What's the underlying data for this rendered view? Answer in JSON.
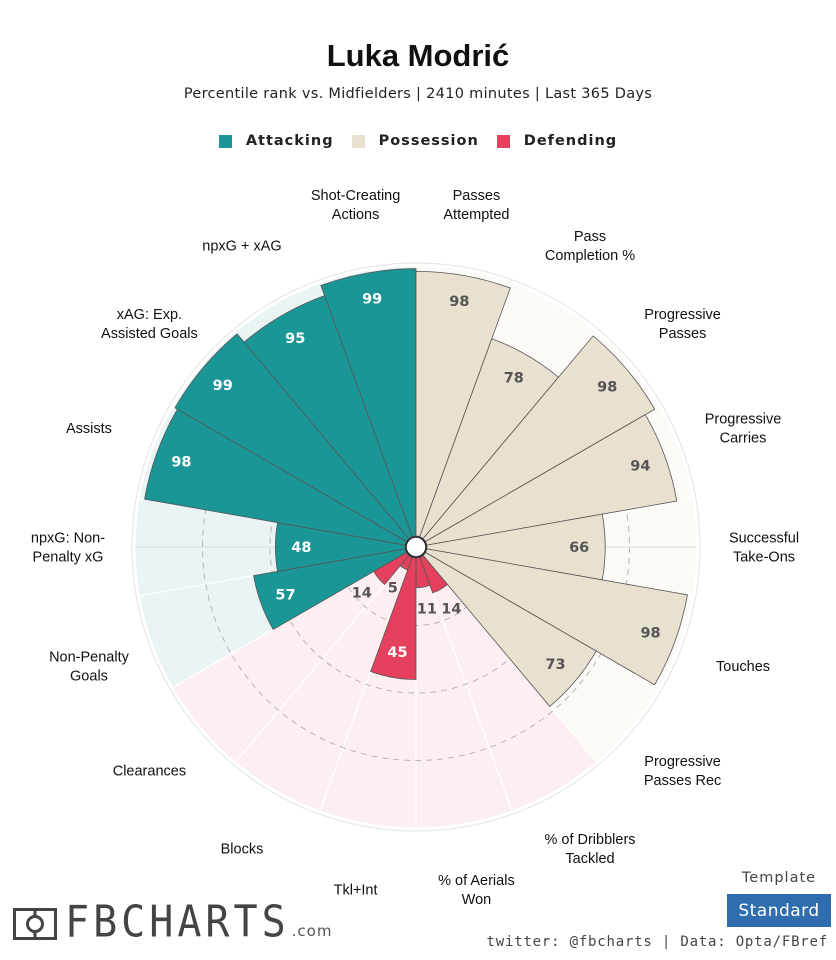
{
  "header": {
    "title": "Luka Modrić",
    "subtitle": "Percentile rank vs. Midfielders | 2410 minutes | Last 365 Days"
  },
  "legend": [
    {
      "label": "Attacking",
      "color": "#1a9696"
    },
    {
      "label": "Possession",
      "color": "#e8e1d0"
    },
    {
      "label": "Defending",
      "color": "#e5405e"
    }
  ],
  "chart_data": {
    "type": "radial-bar",
    "range": [
      0,
      100
    ],
    "gridlines": [
      25,
      50,
      75
    ],
    "categories": [
      {
        "label": "Shot-Creating\nActions",
        "value": 99,
        "group": "Attacking"
      },
      {
        "label": "Passes\nAttempted",
        "value": 98,
        "group": "Possession"
      },
      {
        "label": "Pass\nCompletion %",
        "value": 78,
        "group": "Possession"
      },
      {
        "label": "Progressive\nPasses",
        "value": 98,
        "group": "Possession"
      },
      {
        "label": "Progressive\nCarries",
        "value": 94,
        "group": "Possession"
      },
      {
        "label": "Successful\nTake-Ons",
        "value": 66,
        "group": "Possession"
      },
      {
        "label": "Touches",
        "value": 98,
        "group": "Possession"
      },
      {
        "label": "Progressive\nPasses Rec",
        "value": 73,
        "group": "Possession"
      },
      {
        "label": "% of Dribblers\nTackled",
        "value": 14,
        "group": "Defending"
      },
      {
        "label": "% of Aerials\nWon",
        "value": 11,
        "group": "Defending"
      },
      {
        "label": "Tkl+Int",
        "value": 45,
        "group": "Defending"
      },
      {
        "label": "Blocks",
        "value": 5,
        "group": "Defending"
      },
      {
        "label": "Clearances",
        "value": 14,
        "group": "Defending"
      },
      {
        "label": "Non-Penalty\nGoals",
        "value": 57,
        "group": "Attacking"
      },
      {
        "label": "npxG: Non-\nPenalty xG",
        "value": 48,
        "group": "Attacking"
      },
      {
        "label": "Assists",
        "value": 98,
        "group": "Attacking"
      },
      {
        "label": "xAG: Exp.\nAssisted Goals",
        "value": 99,
        "group": "Attacking"
      },
      {
        "label": "npxG + xAG",
        "value": 95,
        "group": "Attacking"
      }
    ],
    "group_colors": {
      "Attacking": {
        "bar": "#1a9696",
        "bg": "#eaf4f5",
        "text": "#ffffff"
      },
      "Possession": {
        "bar": "#e8e1d0",
        "bg": "#fbfaf7",
        "text": "#555555"
      },
      "Defending": {
        "bar": "#e5405e",
        "bg": "#fdeef1",
        "text": "#ffffff"
      }
    }
  },
  "template": {
    "label": "Template",
    "button": "Standard"
  },
  "footer": {
    "credit": "twitter: @fbcharts | Data: Opta/FBref"
  },
  "brand": {
    "name": "FBCHARTS",
    "suffix": ".com"
  }
}
